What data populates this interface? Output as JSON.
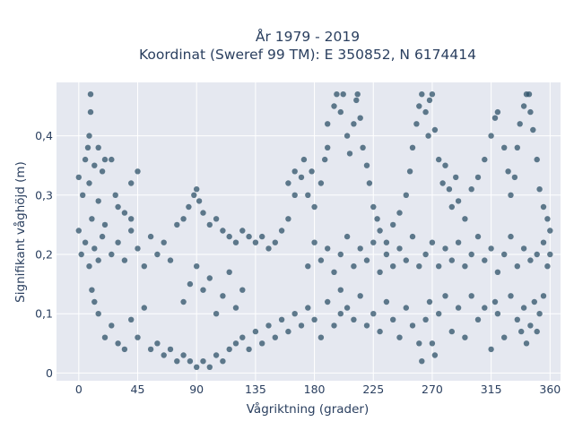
{
  "chart_data": {
    "type": "scatter",
    "title_line1": "År 1979 - 2019",
    "title_line2": "Koordinat (Sweref 99 TM): E 350852, N 6174414",
    "xlabel": "Vågriktning (grader)",
    "ylabel": "Signifikant våghöjd (m)",
    "xlim": [
      -17,
      368
    ],
    "ylim": [
      -0.013,
      0.49
    ],
    "x_ticks": [
      0,
      45,
      90,
      135,
      180,
      225,
      270,
      315,
      360
    ],
    "x_tick_labels": [
      "0",
      "45",
      "90",
      "135",
      "180",
      "225",
      "270",
      "315",
      "360"
    ],
    "y_ticks": [
      0,
      0.1,
      0.2,
      0.3,
      0.4
    ],
    "y_tick_labels": [
      "0",
      "0,1",
      "0,2",
      "0,3",
      "0,4"
    ],
    "grid": true,
    "marker_color": "#2e5168",
    "plot_background": "#e5e8f0",
    "series": [
      {
        "points": [
          [
            0,
            0.24
          ],
          [
            2,
            0.2
          ],
          [
            5,
            0.22
          ],
          [
            8,
            0.18
          ],
          [
            10,
            0.26
          ],
          [
            12,
            0.21
          ],
          [
            15,
            0.19
          ],
          [
            18,
            0.23
          ],
          [
            20,
            0.25
          ],
          [
            25,
            0.2
          ],
          [
            30,
            0.22
          ],
          [
            35,
            0.19
          ],
          [
            40,
            0.24
          ],
          [
            45,
            0.21
          ],
          [
            50,
            0.18
          ],
          [
            55,
            0.23
          ],
          [
            60,
            0.2
          ],
          [
            65,
            0.22
          ],
          [
            70,
            0.19
          ],
          [
            75,
            0.25
          ],
          [
            0,
            0.33
          ],
          [
            3,
            0.3
          ],
          [
            5,
            0.36
          ],
          [
            8,
            0.32
          ],
          [
            8,
            0.4
          ],
          [
            9,
            0.44
          ],
          [
            9,
            0.47
          ],
          [
            7,
            0.38
          ],
          [
            12,
            0.35
          ],
          [
            15,
            0.29
          ],
          [
            15,
            0.38
          ],
          [
            18,
            0.34
          ],
          [
            20,
            0.36
          ],
          [
            25,
            0.36
          ],
          [
            28,
            0.3
          ],
          [
            30,
            0.28
          ],
          [
            35,
            0.27
          ],
          [
            40,
            0.26
          ],
          [
            45,
            0.34
          ],
          [
            40,
            0.32
          ],
          [
            10,
            0.14
          ],
          [
            12,
            0.12
          ],
          [
            15,
            0.1
          ],
          [
            20,
            0.06
          ],
          [
            25,
            0.08
          ],
          [
            30,
            0.05
          ],
          [
            35,
            0.04
          ],
          [
            40,
            0.09
          ],
          [
            45,
            0.06
          ],
          [
            50,
            0.11
          ],
          [
            55,
            0.04
          ],
          [
            60,
            0.05
          ],
          [
            65,
            0.03
          ],
          [
            70,
            0.04
          ],
          [
            75,
            0.02
          ],
          [
            80,
            0.03
          ],
          [
            85,
            0.02
          ],
          [
            90,
            0.01
          ],
          [
            95,
            0.02
          ],
          [
            100,
            0.01
          ],
          [
            105,
            0.03
          ],
          [
            110,
            0.02
          ],
          [
            115,
            0.04
          ],
          [
            120,
            0.05
          ],
          [
            125,
            0.06
          ],
          [
            130,
            0.04
          ],
          [
            135,
            0.07
          ],
          [
            140,
            0.05
          ],
          [
            145,
            0.08
          ],
          [
            150,
            0.06
          ],
          [
            155,
            0.09
          ],
          [
            160,
            0.07
          ],
          [
            165,
            0.1
          ],
          [
            170,
            0.08
          ],
          [
            175,
            0.11
          ],
          [
            180,
            0.09
          ],
          [
            185,
            0.06
          ],
          [
            190,
            0.12
          ],
          [
            195,
            0.08
          ],
          [
            200,
            0.1
          ],
          [
            80,
            0.12
          ],
          [
            85,
            0.15
          ],
          [
            90,
            0.18
          ],
          [
            95,
            0.14
          ],
          [
            100,
            0.16
          ],
          [
            105,
            0.1
          ],
          [
            110,
            0.13
          ],
          [
            115,
            0.17
          ],
          [
            120,
            0.11
          ],
          [
            125,
            0.14
          ],
          [
            80,
            0.26
          ],
          [
            84,
            0.28
          ],
          [
            88,
            0.3
          ],
          [
            90,
            0.31
          ],
          [
            92,
            0.29
          ],
          [
            95,
            0.27
          ],
          [
            100,
            0.25
          ],
          [
            105,
            0.26
          ],
          [
            110,
            0.24
          ],
          [
            115,
            0.23
          ],
          [
            120,
            0.22
          ],
          [
            125,
            0.24
          ],
          [
            130,
            0.23
          ],
          [
            135,
            0.22
          ],
          [
            140,
            0.23
          ],
          [
            145,
            0.21
          ],
          [
            150,
            0.22
          ],
          [
            155,
            0.24
          ],
          [
            160,
            0.26
          ],
          [
            165,
            0.3
          ],
          [
            160,
            0.32
          ],
          [
            165,
            0.34
          ],
          [
            170,
            0.33
          ],
          [
            172,
            0.36
          ],
          [
            175,
            0.3
          ],
          [
            178,
            0.34
          ],
          [
            180,
            0.28
          ],
          [
            185,
            0.32
          ],
          [
            188,
            0.36
          ],
          [
            190,
            0.38
          ],
          [
            190,
            0.42
          ],
          [
            195,
            0.45
          ],
          [
            197,
            0.47
          ],
          [
            200,
            0.44
          ],
          [
            202,
            0.47
          ],
          [
            205,
            0.4
          ],
          [
            207,
            0.37
          ],
          [
            210,
            0.42
          ],
          [
            212,
            0.46
          ],
          [
            213,
            0.47
          ],
          [
            215,
            0.43
          ],
          [
            217,
            0.38
          ],
          [
            220,
            0.35
          ],
          [
            222,
            0.32
          ],
          [
            225,
            0.28
          ],
          [
            228,
            0.26
          ],
          [
            230,
            0.24
          ],
          [
            235,
            0.22
          ],
          [
            240,
            0.25
          ],
          [
            245,
            0.27
          ],
          [
            250,
            0.3
          ],
          [
            253,
            0.34
          ],
          [
            255,
            0.38
          ],
          [
            258,
            0.42
          ],
          [
            260,
            0.45
          ],
          [
            262,
            0.47
          ],
          [
            265,
            0.44
          ],
          [
            267,
            0.4
          ],
          [
            268,
            0.46
          ],
          [
            270,
            0.47
          ],
          [
            272,
            0.41
          ],
          [
            275,
            0.36
          ],
          [
            278,
            0.32
          ],
          [
            280,
            0.35
          ],
          [
            283,
            0.31
          ],
          [
            285,
            0.28
          ],
          [
            288,
            0.33
          ],
          [
            290,
            0.29
          ],
          [
            295,
            0.26
          ],
          [
            300,
            0.31
          ],
          [
            305,
            0.33
          ],
          [
            310,
            0.36
          ],
          [
            315,
            0.4
          ],
          [
            318,
            0.43
          ],
          [
            320,
            0.44
          ],
          [
            325,
            0.38
          ],
          [
            328,
            0.34
          ],
          [
            330,
            0.3
          ],
          [
            333,
            0.33
          ],
          [
            335,
            0.38
          ],
          [
            337,
            0.42
          ],
          [
            340,
            0.45
          ],
          [
            342,
            0.47
          ],
          [
            344,
            0.47
          ],
          [
            345,
            0.44
          ],
          [
            347,
            0.41
          ],
          [
            350,
            0.36
          ],
          [
            352,
            0.31
          ],
          [
            355,
            0.28
          ],
          [
            358,
            0.26
          ],
          [
            360,
            0.24
          ],
          [
            360,
            0.2
          ],
          [
            358,
            0.18
          ],
          [
            355,
            0.22
          ],
          [
            350,
            0.2
          ],
          [
            345,
            0.19
          ],
          [
            340,
            0.21
          ],
          [
            335,
            0.18
          ],
          [
            330,
            0.23
          ],
          [
            325,
            0.2
          ],
          [
            320,
            0.17
          ],
          [
            315,
            0.21
          ],
          [
            310,
            0.19
          ],
          [
            305,
            0.23
          ],
          [
            300,
            0.2
          ],
          [
            295,
            0.18
          ],
          [
            290,
            0.22
          ],
          [
            285,
            0.19
          ],
          [
            280,
            0.21
          ],
          [
            275,
            0.18
          ],
          [
            270,
            0.22
          ],
          [
            265,
            0.2
          ],
          [
            260,
            0.18
          ],
          [
            255,
            0.23
          ],
          [
            250,
            0.19
          ],
          [
            245,
            0.21
          ],
          [
            240,
            0.18
          ],
          [
            235,
            0.2
          ],
          [
            230,
            0.17
          ],
          [
            225,
            0.22
          ],
          [
            220,
            0.19
          ],
          [
            215,
            0.21
          ],
          [
            210,
            0.18
          ],
          [
            205,
            0.23
          ],
          [
            200,
            0.2
          ],
          [
            195,
            0.17
          ],
          [
            190,
            0.21
          ],
          [
            185,
            0.19
          ],
          [
            180,
            0.22
          ],
          [
            175,
            0.18
          ],
          [
            200,
            0.14
          ],
          [
            205,
            0.11
          ],
          [
            210,
            0.09
          ],
          [
            215,
            0.13
          ],
          [
            220,
            0.08
          ],
          [
            225,
            0.1
          ],
          [
            230,
            0.07
          ],
          [
            235,
            0.12
          ],
          [
            240,
            0.09
          ],
          [
            245,
            0.06
          ],
          [
            250,
            0.11
          ],
          [
            255,
            0.08
          ],
          [
            260,
            0.05
          ],
          [
            262,
            0.02
          ],
          [
            265,
            0.09
          ],
          [
            268,
            0.12
          ],
          [
            270,
            0.05
          ],
          [
            272,
            0.03
          ],
          [
            275,
            0.1
          ],
          [
            280,
            0.13
          ],
          [
            285,
            0.07
          ],
          [
            290,
            0.11
          ],
          [
            295,
            0.06
          ],
          [
            300,
            0.13
          ],
          [
            305,
            0.09
          ],
          [
            310,
            0.11
          ],
          [
            315,
            0.04
          ],
          [
            318,
            0.12
          ],
          [
            320,
            0.1
          ],
          [
            325,
            0.06
          ],
          [
            330,
            0.13
          ],
          [
            335,
            0.09
          ],
          [
            338,
            0.07
          ],
          [
            340,
            0.11
          ],
          [
            342,
            0.05
          ],
          [
            345,
            0.08
          ],
          [
            348,
            0.12
          ],
          [
            350,
            0.07
          ],
          [
            352,
            0.1
          ],
          [
            355,
            0.13
          ]
        ]
      }
    ]
  }
}
